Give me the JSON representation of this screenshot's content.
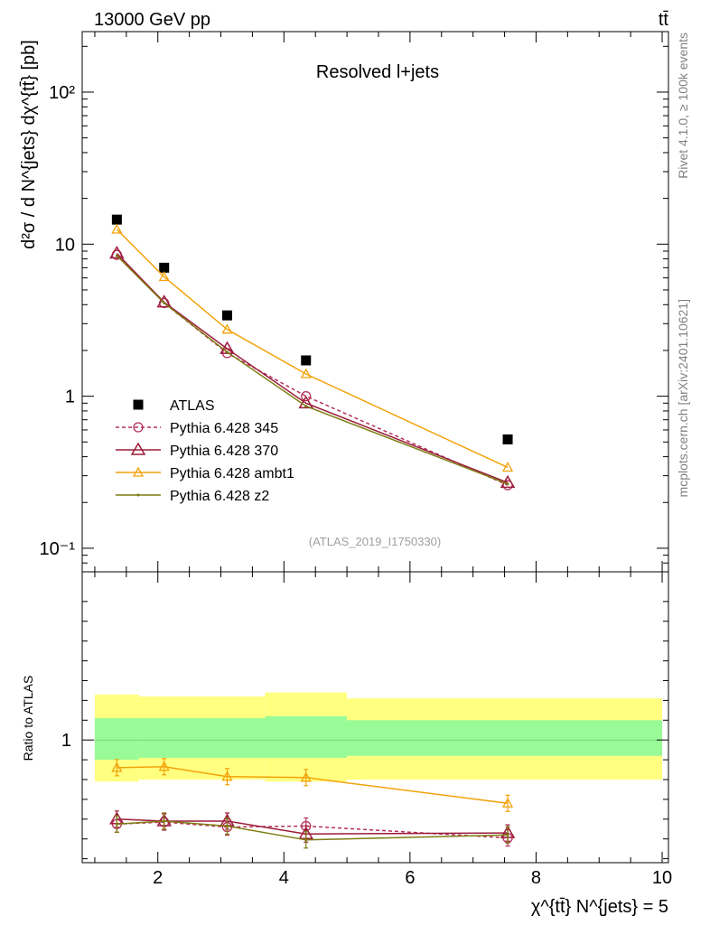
{
  "header": {
    "left_label": "13000 GeV pp",
    "right_label": "tt̄",
    "rivet_label": "Rivet 4.1.0, ≥ 100k events",
    "source_label": "mcplots.cern.ch [arXiv:2401.10621]"
  },
  "chart_data": [
    {
      "type": "scatter",
      "panel": "main",
      "title": "Resolved l+jets",
      "watermark": "(ATLAS_2019_I1750330)",
      "ylabel": "d²σ / d N^{jets} dχ^{tt̄} [pb]",
      "yscale": "log",
      "ylim": [
        0.07,
        250
      ],
      "xlim": [
        0.8,
        10.1
      ],
      "ytick_labels": [
        "10⁻¹",
        "1",
        "10",
        "10²"
      ],
      "ytick_values": [
        0.1,
        1,
        10,
        100
      ],
      "x": [
        1.35,
        2.1,
        3.1,
        4.35,
        7.55
      ],
      "series": [
        {
          "name": "ATLAS",
          "style": "data",
          "color": "#000000",
          "values": [
            14.5,
            7.0,
            3.4,
            1.72,
            0.52
          ]
        },
        {
          "name": "Pythia 6.428 345",
          "style": "dashed-circle",
          "color": "#b5305a",
          "values": [
            8.5,
            4.1,
            1.92,
            1.0,
            0.26
          ]
        },
        {
          "name": "Pythia 6.428 370",
          "style": "solid-triangle",
          "color": "#9b1c3a",
          "values": [
            8.7,
            4.15,
            2.05,
            0.9,
            0.27
          ]
        },
        {
          "name": "Pythia 6.428 ambt1",
          "style": "solid-triangle-small",
          "color": "#f2a20a",
          "values": [
            12.5,
            6.1,
            2.75,
            1.4,
            0.34
          ]
        },
        {
          "name": "Pythia 6.428 z2",
          "style": "solid-dot",
          "color": "#7d7d12",
          "values": [
            8.4,
            4.1,
            1.95,
            0.86,
            0.265
          ]
        }
      ]
    },
    {
      "type": "line",
      "panel": "ratio",
      "ylabel": "Ratio to ATLAS",
      "xlabel": "χ^{tt̄} N^{jets} = 5",
      "xlim": [
        0.8,
        10.1
      ],
      "ylim": [
        0.38,
        1.85
      ],
      "xtick_labels": [
        "2",
        "4",
        "6",
        "8",
        "10"
      ],
      "xtick_values": [
        2,
        4,
        6,
        8,
        10
      ],
      "ytick_labels": [
        "1"
      ],
      "ytick_values": [
        1
      ],
      "bands": [
        {
          "name": "stat+syst",
          "color": "#ffff80",
          "edges": [
            1.0,
            1.7,
            3.0,
            3.7,
            5.0,
            10.0
          ],
          "lower": [
            0.79,
            0.8,
            0.8,
            0.79,
            0.8
          ],
          "upper": [
            1.23,
            1.22,
            1.22,
            1.24,
            1.21
          ]
        },
        {
          "name": "stat",
          "color": "#98fb98",
          "edges": [
            1.0,
            1.7,
            3.0,
            3.7,
            5.0,
            10.0
          ],
          "lower": [
            0.9,
            0.91,
            0.91,
            0.91,
            0.92
          ],
          "upper": [
            1.11,
            1.11,
            1.11,
            1.12,
            1.1
          ]
        }
      ],
      "x": [
        1.35,
        2.1,
        3.1,
        4.35,
        7.55
      ],
      "series": [
        {
          "name": "Pythia 6.428 345",
          "color": "#b5305a",
          "values": [
            0.575,
            0.585,
            0.56,
            0.565,
            0.505
          ]
        },
        {
          "name": "Pythia 6.428 370",
          "color": "#9b1c3a",
          "values": [
            0.6,
            0.59,
            0.59,
            0.525,
            0.53
          ]
        },
        {
          "name": "Pythia 6.428 ambt1",
          "color": "#f2a20a",
          "values": [
            0.86,
            0.865,
            0.815,
            0.81,
            0.68
          ]
        },
        {
          "name": "Pythia 6.428 z2",
          "color": "#7d7d12",
          "values": [
            0.575,
            0.59,
            0.565,
            0.495,
            0.52
          ]
        }
      ]
    }
  ]
}
